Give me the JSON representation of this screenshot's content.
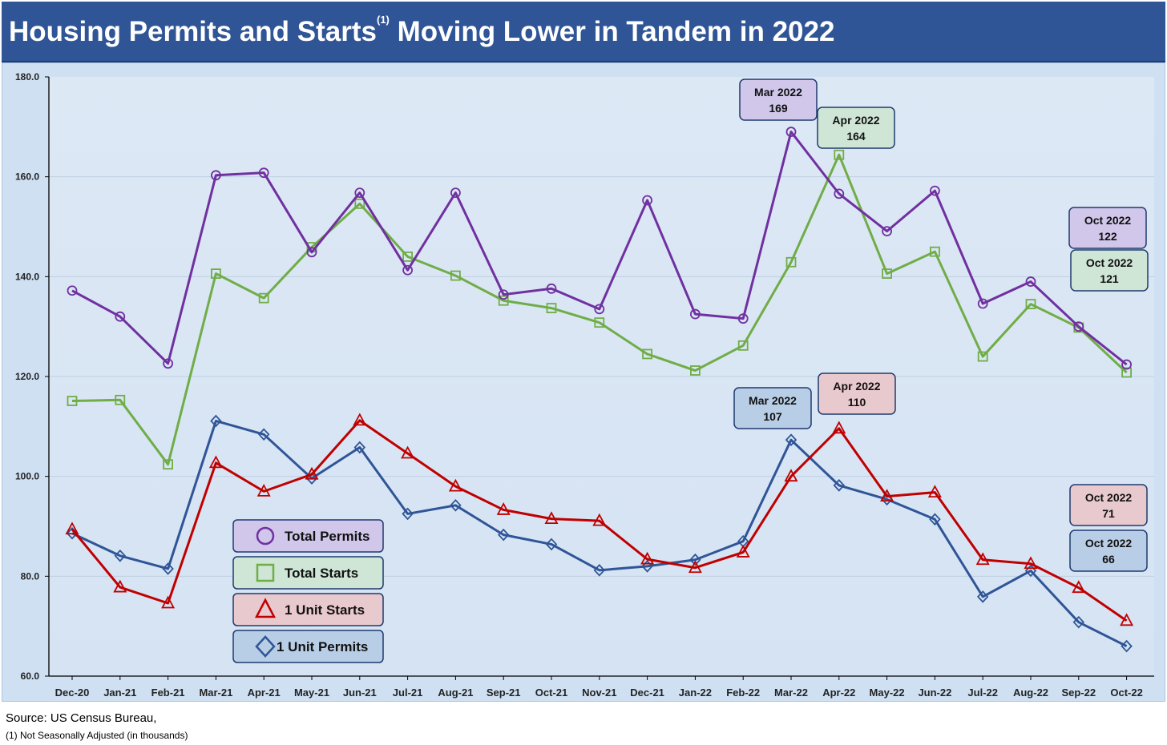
{
  "title": {
    "main_before": "Housing Permits and Starts",
    "superscript": "(1)",
    "main_after": " Moving Lower in Tandem in 2022"
  },
  "footer": {
    "source": "Source: US Census Bureau,",
    "note": "(1) Not Seasonally Adjusted (in thousands)"
  },
  "chart_data": {
    "type": "line",
    "title": "Housing Permits and Starts(1) Moving Lower in Tandem in 2022",
    "xlabel": "",
    "ylabel": "",
    "ylim": [
      60,
      180
    ],
    "yticks": [
      "60.0",
      "80.0",
      "100.0",
      "120.0",
      "140.0",
      "160.0",
      "180.0"
    ],
    "grid": true,
    "legend_placement": "bottom-left",
    "categories": [
      "Dec-20",
      "Jan-21",
      "Feb-21",
      "Mar-21",
      "Apr-21",
      "May-21",
      "Jun-21",
      "Jul-21",
      "Aug-21",
      "Sep-21",
      "Oct-21",
      "Nov-21",
      "Dec-21",
      "Jan-22",
      "Feb-22",
      "Mar-22",
      "Apr-22",
      "May-22",
      "Jun-22",
      "Jul-22",
      "Aug-22",
      "Sep-22",
      "Oct-22"
    ],
    "series": [
      {
        "name": "Total Permits",
        "color": "#7030a0",
        "marker": "circle",
        "legend_bg": "#d0c7eb",
        "values": [
          137.2,
          132,
          122.6,
          160.3,
          160.8,
          144.9,
          156.8,
          141.3,
          156.8,
          136.4,
          137.6,
          133.5,
          155.3,
          132.5,
          131.6,
          169.0,
          156.6,
          149.1,
          157.2,
          134.6,
          139.0,
          130.0,
          122.4
        ]
      },
      {
        "name": "Total Starts",
        "color": "#70ad47",
        "marker": "square",
        "legend_bg": "#cfe6d6",
        "values": [
          115.1,
          115.3,
          102.4,
          140.6,
          135.7,
          145.9,
          154.6,
          144.0,
          140.2,
          135.2,
          133.7,
          130.8,
          124.5,
          121.2,
          126.2,
          142.9,
          164.4,
          140.6,
          145.0,
          124.0,
          134.5,
          129.8,
          120.8
        ]
      },
      {
        "name": "1 Unit Starts",
        "color": "#c00000",
        "marker": "triangle",
        "legend_bg": "#e8c9cd",
        "values": [
          89.4,
          77.8,
          74.6,
          102.7,
          97.0,
          100.4,
          111.2,
          104.6,
          98.0,
          93.3,
          91.5,
          91.1,
          83.4,
          81.7,
          84.8,
          100.0,
          109.6,
          96.0,
          96.8,
          83.3,
          82.5,
          77.7,
          71.1
        ]
      },
      {
        "name": "1 Unit Permits",
        "color": "#2f5597",
        "marker": "diamond",
        "legend_bg": "#b8cde6",
        "values": [
          88.6,
          84.1,
          81.5,
          111.1,
          108.4,
          99.6,
          105.8,
          92.5,
          94.2,
          88.3,
          86.4,
          81.2,
          82.0,
          83.3,
          87.0,
          107.3,
          98.2,
          95.4,
          91.4,
          75.9,
          81.1,
          70.8,
          66.0
        ]
      }
    ],
    "annotations": [
      {
        "series": "Total Permits",
        "line1": "Mar 2022",
        "line2": "169",
        "bg": "#d0c7eb"
      },
      {
        "series": "Total Starts",
        "line1": "Apr 2022",
        "line2": "164",
        "bg": "#cfe6d6"
      },
      {
        "series": "Total Permits",
        "line1": "Oct 2022",
        "line2": "122",
        "bg": "#d0c7eb"
      },
      {
        "series": "Total Starts",
        "line1": "Oct 2022",
        "line2": "121",
        "bg": "#cfe6d6"
      },
      {
        "series": "1 Unit Permits",
        "line1": "Mar 2022",
        "line2": "107",
        "bg": "#b8cde6"
      },
      {
        "series": "1 Unit Starts",
        "line1": "Apr 2022",
        "line2": "110",
        "bg": "#e8c9cd"
      },
      {
        "series": "1 Unit Starts",
        "line1": "Oct 2022",
        "line2": "71",
        "bg": "#e8c9cd"
      },
      {
        "series": "1 Unit Permits",
        "line1": "Oct 2022",
        "line2": "66",
        "bg": "#b8cde6"
      }
    ]
  }
}
